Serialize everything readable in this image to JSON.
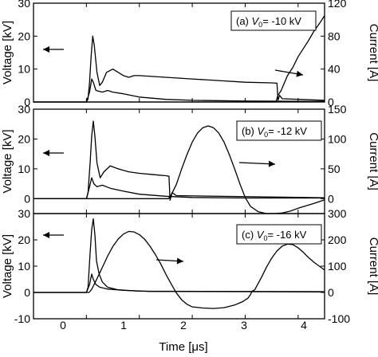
{
  "chart_data": [
    {
      "type": "line",
      "panel_label": "(a) V₀= -10 kV",
      "label_prefix": "(a) ",
      "label_var": "V",
      "label_sub": "0",
      "label_value": "= -10 kV",
      "x_range": [
        -1.0,
        4.5
      ],
      "y_left": {
        "label": "Voltage [kV]",
        "ticks": [
          0,
          10,
          20,
          30
        ],
        "range": [
          0,
          30
        ]
      },
      "y_right": {
        "label": "Current [A]",
        "ticks": [
          0,
          40,
          80,
          120
        ],
        "range": [
          0,
          120
        ]
      },
      "series": [
        {
          "axis": "left",
          "points": [
            [
              -1,
              0
            ],
            [
              0,
              0
            ],
            [
              0.03,
              1
            ],
            [
              0.06,
              6
            ],
            [
              0.09,
              14
            ],
            [
              0.12,
              20
            ],
            [
              0.15,
              17
            ],
            [
              0.2,
              9
            ],
            [
              0.25,
              5
            ],
            [
              0.3,
              6
            ],
            [
              0.38,
              9
            ],
            [
              0.5,
              10
            ],
            [
              0.6,
              9
            ],
            [
              0.7,
              8
            ],
            [
              0.8,
              7.5
            ],
            [
              0.9,
              8
            ],
            [
              1.0,
              8
            ],
            [
              1.5,
              7.5
            ],
            [
              2.0,
              7
            ],
            [
              2.5,
              6.5
            ],
            [
              3.0,
              6
            ],
            [
              3.5,
              5.8
            ],
            [
              3.6,
              5.7
            ],
            [
              3.62,
              0.6
            ],
            [
              3.65,
              2
            ],
            [
              3.7,
              1
            ],
            [
              4.5,
              0.5
            ]
          ]
        },
        {
          "axis": "left",
          "points": [
            [
              -1,
              0
            ],
            [
              0,
              0
            ],
            [
              0.06,
              3
            ],
            [
              0.1,
              7
            ],
            [
              0.13,
              6
            ],
            [
              0.18,
              3.5
            ],
            [
              0.3,
              3
            ],
            [
              0.4,
              3.5
            ],
            [
              0.5,
              3
            ],
            [
              0.7,
              2.5
            ],
            [
              1.0,
              1.5
            ],
            [
              1.5,
              0.8
            ],
            [
              2.0,
              0.5
            ],
            [
              3.0,
              0.3
            ],
            [
              4.5,
              0.2
            ]
          ]
        },
        {
          "axis": "right",
          "points": [
            [
              -1,
              0
            ],
            [
              3.58,
              0
            ],
            [
              3.62,
              8
            ],
            [
              3.68,
              14
            ],
            [
              3.72,
              20
            ],
            [
              3.8,
              32
            ],
            [
              3.9,
              42
            ],
            [
              4.0,
              55
            ],
            [
              4.1,
              65
            ],
            [
              4.2,
              75
            ],
            [
              4.3,
              86
            ],
            [
              4.4,
              95
            ],
            [
              4.5,
              105
            ]
          ]
        }
      ]
    },
    {
      "type": "line",
      "panel_label": "(b) V₀= -12 kV",
      "label_prefix": "(b) ",
      "label_var": "V",
      "label_sub": "0",
      "label_value": "= -12 kV",
      "x_range": [
        -1.0,
        4.5
      ],
      "y_left": {
        "label": "Voltage [kV]",
        "ticks": [
          0,
          10,
          20,
          30
        ],
        "range": [
          -5,
          30
        ]
      },
      "y_right": {
        "label": "Current [A]",
        "ticks": [
          0,
          50,
          100,
          150
        ],
        "range": [
          -25,
          150
        ]
      },
      "series": [
        {
          "axis": "left",
          "points": [
            [
              -1,
              0
            ],
            [
              0,
              0
            ],
            [
              0.03,
              2
            ],
            [
              0.07,
              12
            ],
            [
              0.1,
              21
            ],
            [
              0.13,
              26
            ],
            [
              0.16,
              21
            ],
            [
              0.2,
              12
            ],
            [
              0.26,
              7
            ],
            [
              0.33,
              9
            ],
            [
              0.45,
              11
            ],
            [
              0.6,
              10
            ],
            [
              0.8,
              9
            ],
            [
              1.0,
              8.5
            ],
            [
              1.3,
              8
            ],
            [
              1.5,
              7.7
            ],
            [
              1.56,
              7.5
            ],
            [
              1.58,
              -0.5
            ],
            [
              1.62,
              2
            ],
            [
              1.7,
              1
            ],
            [
              4.5,
              0.3
            ]
          ]
        },
        {
          "axis": "left",
          "points": [
            [
              -1,
              0
            ],
            [
              0,
              0
            ],
            [
              0.06,
              4
            ],
            [
              0.1,
              7
            ],
            [
              0.14,
              5
            ],
            [
              0.2,
              4
            ],
            [
              0.3,
              4.5
            ],
            [
              0.45,
              3.5
            ],
            [
              0.7,
              2.5
            ],
            [
              1.0,
              1.5
            ],
            [
              1.5,
              0.8
            ],
            [
              2.0,
              0.4
            ],
            [
              3.0,
              0.2
            ],
            [
              4.5,
              0.2
            ]
          ]
        },
        {
          "axis": "right",
          "points": [
            [
              -1,
              0
            ],
            [
              1.55,
              0
            ],
            [
              1.6,
              6
            ],
            [
              1.7,
              24
            ],
            [
              1.8,
              50
            ],
            [
              1.9,
              74
            ],
            [
              2.0,
              95
            ],
            [
              2.1,
              110
            ],
            [
              2.2,
              119
            ],
            [
              2.3,
              122
            ],
            [
              2.4,
              119
            ],
            [
              2.5,
              110
            ],
            [
              2.6,
              95
            ],
            [
              2.7,
              74
            ],
            [
              2.8,
              50
            ],
            [
              2.9,
              25
            ],
            [
              3.0,
              2
            ],
            [
              3.1,
              -13
            ],
            [
              3.25,
              -22
            ],
            [
              3.4,
              -25
            ],
            [
              3.55,
              -25
            ],
            [
              3.7,
              -24
            ],
            [
              3.85,
              -21
            ],
            [
              4.0,
              -16
            ],
            [
              4.15,
              -12
            ],
            [
              4.3,
              -8
            ],
            [
              4.5,
              -2
            ]
          ]
        }
      ]
    },
    {
      "type": "line",
      "panel_label": "(c) V₀= -16 kV",
      "label_prefix": "(c) ",
      "label_var": "V",
      "label_sub": "0",
      "label_value": "= -16 kV",
      "x_range": [
        -1.0,
        4.5
      ],
      "x_ticks": [
        0,
        1,
        2,
        3,
        4
      ],
      "x_label": "Time [μs]",
      "y_left": {
        "label": "Voltage [kV]",
        "ticks": [
          -10,
          0,
          10,
          20,
          30
        ],
        "range": [
          -10,
          30
        ]
      },
      "y_right": {
        "label": "Current [A]",
        "ticks": [
          -100,
          0,
          100,
          200,
          300
        ],
        "range": [
          -100,
          300
        ]
      },
      "series": [
        {
          "axis": "left",
          "points": [
            [
              -1,
              0
            ],
            [
              0,
              0
            ],
            [
              0.03,
              2
            ],
            [
              0.07,
              15
            ],
            [
              0.1,
              24
            ],
            [
              0.13,
              28
            ],
            [
              0.16,
              22
            ],
            [
              0.19,
              12
            ],
            [
              0.24,
              7
            ],
            [
              0.3,
              4
            ],
            [
              0.4,
              2
            ],
            [
              0.6,
              1
            ],
            [
              1.0,
              0.5
            ],
            [
              4.5,
              0.3
            ]
          ]
        },
        {
          "axis": "left",
          "points": [
            [
              -1,
              0
            ],
            [
              0,
              0
            ],
            [
              0.06,
              3
            ],
            [
              0.1,
              7
            ],
            [
              0.13,
              5
            ],
            [
              0.18,
              3
            ],
            [
              0.25,
              2
            ],
            [
              0.4,
              1.3
            ],
            [
              0.7,
              0.8
            ],
            [
              1.2,
              0.4
            ],
            [
              4.5,
              0.2
            ]
          ]
        },
        {
          "axis": "right",
          "points": [
            [
              -1,
              0
            ],
            [
              0.05,
              0
            ],
            [
              0.1,
              12
            ],
            [
              0.2,
              52
            ],
            [
              0.3,
              95
            ],
            [
              0.4,
              138
            ],
            [
              0.5,
              175
            ],
            [
              0.6,
              203
            ],
            [
              0.7,
              222
            ],
            [
              0.8,
              232
            ],
            [
              0.9,
              230
            ],
            [
              1.0,
              220
            ],
            [
              1.1,
              202
            ],
            [
              1.2,
              176
            ],
            [
              1.3,
              145
            ],
            [
              1.4,
              110
            ],
            [
              1.5,
              70
            ],
            [
              1.6,
              33
            ],
            [
              1.7,
              -2
            ],
            [
              1.8,
              -28
            ],
            [
              1.9,
              -45
            ],
            [
              2.0,
              -55
            ],
            [
              2.2,
              -59
            ],
            [
              2.4,
              -61
            ],
            [
              2.6,
              -58
            ],
            [
              2.8,
              -48
            ],
            [
              2.95,
              -35
            ],
            [
              3.05,
              -22
            ],
            [
              3.1,
              -8
            ],
            [
              3.13,
              5
            ],
            [
              3.18,
              10
            ],
            [
              3.3,
              55
            ],
            [
              3.4,
              95
            ],
            [
              3.5,
              130
            ],
            [
              3.6,
              158
            ],
            [
              3.7,
              176
            ],
            [
              3.8,
              184
            ],
            [
              3.9,
              182
            ],
            [
              4.0,
              170
            ],
            [
              4.1,
              152
            ],
            [
              4.2,
              132
            ],
            [
              4.3,
              115
            ],
            [
              4.4,
              100
            ],
            [
              4.5,
              85
            ]
          ]
        }
      ]
    }
  ]
}
